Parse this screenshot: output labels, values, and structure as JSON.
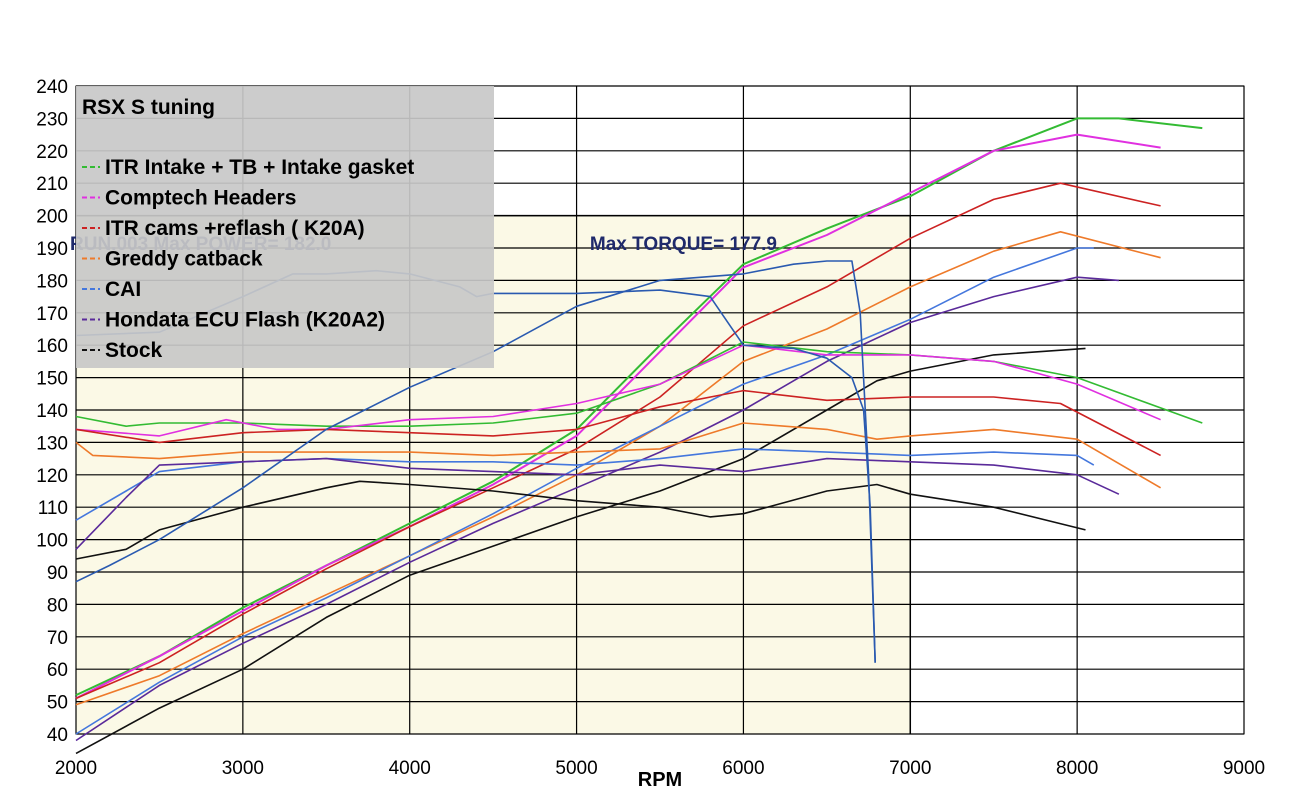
{
  "chart_data": {
    "type": "line",
    "title": "",
    "xlabel": "RPM",
    "ylabel": "",
    "xlim": [
      2000,
      9000
    ],
    "ylim": [
      40,
      240
    ],
    "xticks": [
      "2000",
      "3000",
      "4000",
      "5000",
      "6000",
      "7000",
      "8000",
      "9000"
    ],
    "yticks": [
      "40",
      "50",
      "60",
      "70",
      "80",
      "90",
      "100",
      "110",
      "120",
      "130",
      "140",
      "150",
      "160",
      "170",
      "180",
      "190",
      "200",
      "210",
      "220",
      "230",
      "240"
    ],
    "grid": true,
    "legend": {
      "title": "RSX S tuning",
      "placement": "top-left",
      "entries": [
        {
          "label": "ITR Intake + TB + Intake gasket",
          "color": "#33bb33"
        },
        {
          "label": "Comptech Headers",
          "color": "#e030e0"
        },
        {
          "label": "ITR cams +reflash ( K20A)",
          "color": "#cc2222"
        },
        {
          "label": "Greddy catback",
          "color": "#ee7a2a"
        },
        {
          "label": "CAI",
          "color": "#4477dd"
        },
        {
          "label": "Hondata ECU Flash (K20A2)",
          "color": "#5a2a9a"
        },
        {
          "label": "Stock",
          "color": "#111111"
        }
      ]
    },
    "annotations": [
      {
        "text": "RUN.003  Max POWER= 182.0",
        "x": 2000,
        "y": 190
      },
      {
        "text": "Max TORQUE= 177.9",
        "x": 5080,
        "y": 190
      }
    ],
    "series": [
      {
        "name": "ITR Intake + TB + Intake gasket",
        "color": "#33bb33",
        "width": 2,
        "x": [
          2000,
          2500,
          3000,
          3500,
          4000,
          4500,
          5000,
          5500,
          6000,
          6500,
          7000,
          7500,
          8000,
          8250,
          8750
        ],
        "y": [
          52,
          64,
          79,
          92,
          105,
          118,
          134,
          160,
          185,
          196,
          206,
          220,
          230,
          230,
          227
        ]
      },
      {
        "name": "Comptech Headers",
        "color": "#e030e0",
        "width": 2,
        "x": [
          2000,
          2500,
          3000,
          3500,
          4000,
          4500,
          5000,
          5500,
          6000,
          6500,
          7000,
          7500,
          8000,
          8500
        ],
        "y": [
          51,
          64,
          78,
          92,
          104,
          117,
          132,
          158,
          184,
          194,
          207,
          220,
          225,
          221
        ]
      },
      {
        "name": "ITR cams +reflash ( K20A)",
        "color": "#cc2222",
        "width": 1.6,
        "x": [
          2000,
          2500,
          3000,
          3500,
          4000,
          4500,
          5000,
          5500,
          6000,
          6500,
          7000,
          7500,
          7900,
          8500
        ],
        "y": [
          51,
          62,
          77,
          91,
          104,
          116,
          128,
          144,
          166,
          178,
          193,
          205,
          210,
          203
        ]
      },
      {
        "name": "Greddy catback",
        "color": "#ee7a2a",
        "width": 1.6,
        "x": [
          2000,
          2500,
          3000,
          3500,
          4000,
          4500,
          5000,
          5500,
          6000,
          6500,
          7000,
          7500,
          7900,
          8500
        ],
        "y": [
          49,
          58,
          71,
          83,
          95,
          107,
          120,
          135,
          155,
          165,
          178,
          189,
          195,
          187
        ]
      },
      {
        "name": "CAI",
        "color": "#4477dd",
        "width": 1.6,
        "x": [
          2000,
          2500,
          3000,
          3500,
          4000,
          4500,
          5000,
          5500,
          6000,
          6500,
          7000,
          7500,
          8000,
          8100
        ],
        "y": [
          40,
          56,
          70,
          82,
          95,
          108,
          122,
          135,
          148,
          157,
          168,
          181,
          190,
          190
        ]
      },
      {
        "name": "Hondata ECU Flash (K20A2)",
        "color": "#5a2a9a",
        "width": 1.6,
        "x": [
          2000,
          2500,
          3000,
          3500,
          4000,
          4500,
          5000,
          5500,
          6000,
          6500,
          7000,
          7500,
          8000,
          8250
        ],
        "y": [
          38,
          55,
          68,
          80,
          93,
          105,
          116,
          127,
          140,
          155,
          167,
          175,
          181,
          180
        ]
      },
      {
        "name": "Stock",
        "color": "#111111",
        "width": 1.6,
        "x": [
          2000,
          2500,
          3000,
          3500,
          4000,
          4500,
          5000,
          5500,
          6000,
          6500,
          6800,
          7000,
          7500,
          8050
        ],
        "y": [
          34,
          48,
          60,
          76,
          89,
          98,
          107,
          115,
          125,
          140,
          149,
          152,
          157,
          159
        ]
      },
      {
        "name": "ITR Intake + TB + Intake gasket (torque)",
        "color": "#33bb33",
        "width": 1.6,
        "x": [
          2000,
          2300,
          2500,
          3000,
          3500,
          4000,
          4500,
          5000,
          5500,
          6000,
          6500,
          7000,
          7500,
          8000,
          8750
        ],
        "y": [
          138,
          135,
          136,
          136,
          135,
          135,
          136,
          139,
          148,
          161,
          158,
          157,
          155,
          150,
          136
        ]
      },
      {
        "name": "Comptech Headers (torque)",
        "color": "#e030e0",
        "width": 1.6,
        "x": [
          2000,
          2500,
          2900,
          3200,
          3500,
          4000,
          4500,
          5000,
          5500,
          6000,
          6500,
          7000,
          7500,
          8000,
          8500
        ],
        "y": [
          134,
          132,
          137,
          134,
          134,
          137,
          138,
          142,
          148,
          160,
          157,
          157,
          155,
          148,
          137
        ]
      },
      {
        "name": "ITR cams +reflash ( K20A) (torque)",
        "color": "#cc2222",
        "width": 1.6,
        "x": [
          2000,
          2500,
          3000,
          3500,
          4000,
          4500,
          5000,
          5500,
          6000,
          6500,
          7000,
          7500,
          7900,
          8500
        ],
        "y": [
          134,
          130,
          133,
          134,
          133,
          132,
          134,
          141,
          146,
          143,
          144,
          144,
          142,
          126
        ]
      },
      {
        "name": "Greddy catback (torque)",
        "color": "#ee7a2a",
        "width": 1.6,
        "x": [
          2000,
          2100,
          2500,
          3000,
          3500,
          4000,
          4500,
          5000,
          5500,
          6000,
          6500,
          6800,
          7000,
          7500,
          8000,
          8500
        ],
        "y": [
          130,
          126,
          125,
          127,
          127,
          127,
          126,
          127,
          128,
          136,
          134,
          131,
          132,
          134,
          131,
          116
        ]
      },
      {
        "name": "CAI (torque)",
        "color": "#4477dd",
        "width": 1.6,
        "x": [
          2000,
          2300,
          2500,
          3000,
          3500,
          4000,
          4500,
          5000,
          5500,
          6000,
          6500,
          7000,
          7500,
          8000,
          8100
        ],
        "y": [
          106,
          115,
          121,
          124,
          125,
          124,
          124,
          123,
          125,
          128,
          127,
          126,
          127,
          126,
          123
        ]
      },
      {
        "name": "Hondata ECU Flash (K20A2) (torque)",
        "color": "#5a2a9a",
        "width": 1.6,
        "x": [
          2000,
          2300,
          2500,
          3000,
          3500,
          4000,
          4500,
          5000,
          5500,
          6000,
          6500,
          7000,
          7500,
          8000,
          8250
        ],
        "y": [
          97,
          113,
          123,
          124,
          125,
          122,
          121,
          120,
          123,
          121,
          125,
          124,
          123,
          120,
          114
        ]
      },
      {
        "name": "Stock (torque)",
        "color": "#111111",
        "width": 1.6,
        "x": [
          2000,
          2300,
          2500,
          3000,
          3500,
          3700,
          4000,
          4500,
          5000,
          5500,
          5800,
          6000,
          6500,
          6800,
          7000,
          7500,
          8050
        ],
        "y": [
          94,
          97,
          103,
          110,
          116,
          118,
          117,
          115,
          112,
          110,
          107,
          108,
          115,
          117,
          114,
          110,
          103
        ]
      },
      {
        "name": "RUN.003 (power)",
        "color": "#2a5ab0",
        "width": 1.6,
        "x": [
          2000,
          2200,
          2500,
          3000,
          3500,
          4000,
          4500,
          5000,
          5500,
          6000,
          6300,
          6500,
          6650,
          6700,
          6750,
          6790
        ],
        "y": [
          87,
          92,
          100,
          116,
          134,
          147,
          158,
          172,
          180,
          182,
          185,
          186,
          186,
          170,
          120,
          62
        ]
      },
      {
        "name": "RUN.003 (torque)",
        "color": "#2a5ab0",
        "width": 1.6,
        "x": [
          2000,
          2500,
          3000,
          3300,
          3500,
          3800,
          4000,
          4300,
          4400,
          4500,
          5000,
          5500,
          5800,
          6000,
          6300,
          6500,
          6650,
          6720,
          6760,
          6790
        ],
        "y": [
          163,
          164,
          175,
          182,
          182,
          183,
          182,
          178,
          175,
          176,
          176,
          177,
          175,
          160,
          159,
          156,
          150,
          140,
          110,
          62
        ]
      }
    ]
  }
}
